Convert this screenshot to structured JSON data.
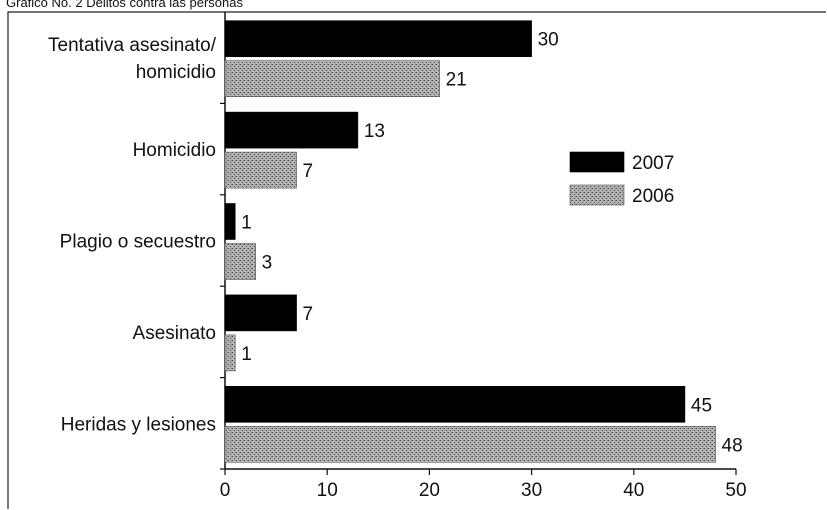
{
  "chart_data": {
    "type": "bar",
    "orientation": "horizontal",
    "title": "Gráfico No. 2 Delitos contra las personas",
    "categories": [
      "Tentativa asesinato/ homicidio",
      "Homicidio",
      "Plagio o secuestro",
      "Asesinato",
      "Heridas y lesiones"
    ],
    "category_lines": [
      [
        "Tentativa asesinato/",
        "homicidio"
      ],
      [
        "Homicidio"
      ],
      [
        "Plagio o secuestro"
      ],
      [
        "Asesinato"
      ],
      [
        "Heridas y lesiones"
      ]
    ],
    "series": [
      {
        "name": "2007",
        "values": [
          30,
          13,
          1,
          7,
          45
        ],
        "color": "#000000",
        "pattern": "solid"
      },
      {
        "name": "2006",
        "values": [
          21,
          7,
          3,
          1,
          48
        ],
        "color": "#8a8a8a",
        "pattern": "stippled"
      }
    ],
    "x_ticks": [
      0,
      10,
      20,
      30,
      40,
      50
    ],
    "xlim": [
      0,
      50
    ],
    "xlabel": "",
    "ylabel": "",
    "grid": false,
    "legend_position": "right"
  }
}
